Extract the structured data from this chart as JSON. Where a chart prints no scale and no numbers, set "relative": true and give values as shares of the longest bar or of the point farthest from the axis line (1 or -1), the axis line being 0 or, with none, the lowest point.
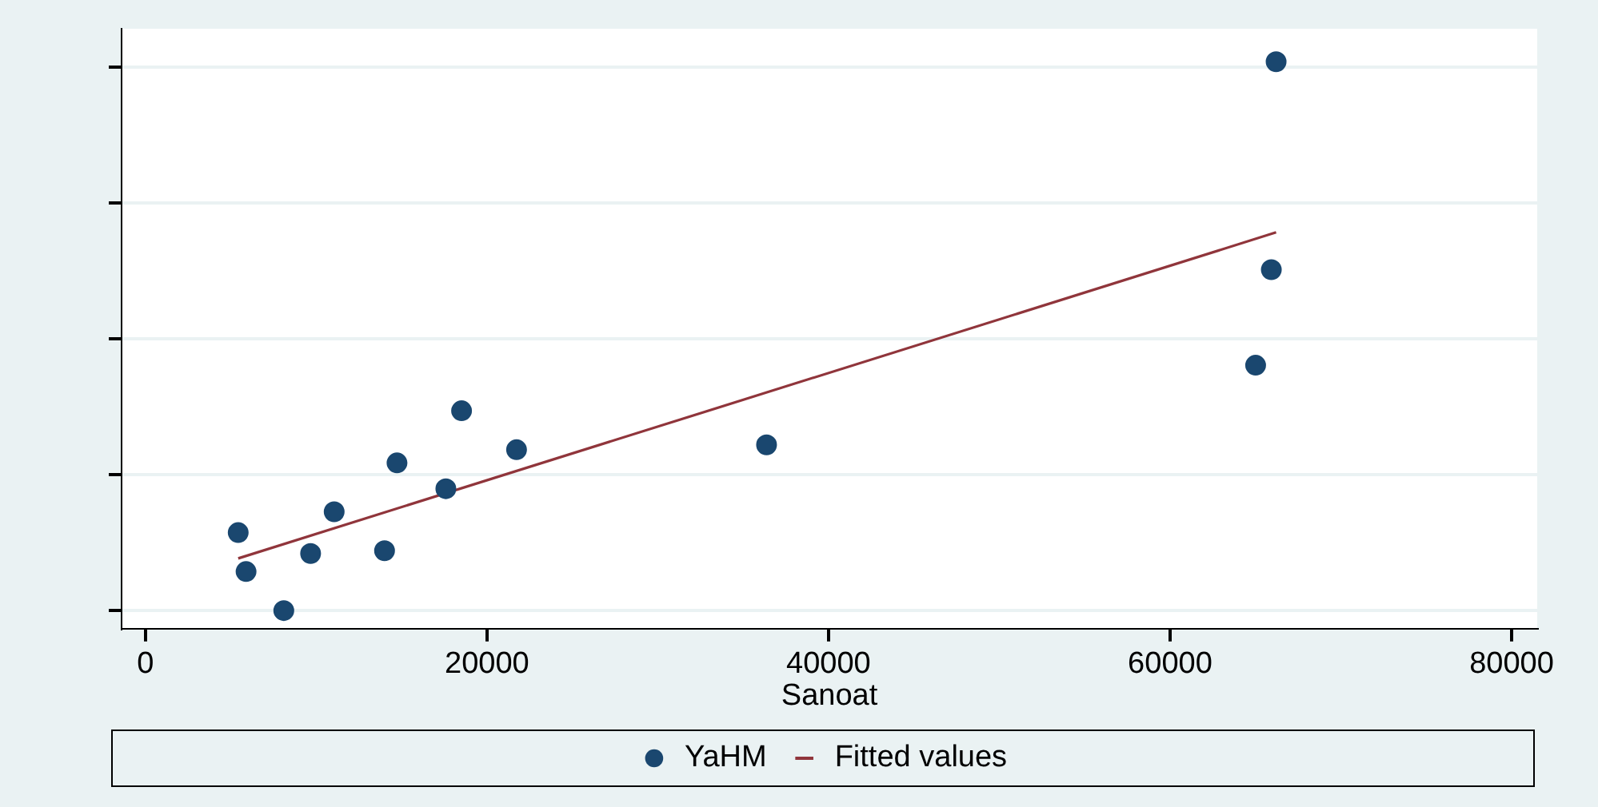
{
  "chart_data": {
    "type": "scatter",
    "xlabel": "Sanoat",
    "relative": true,
    "xlim": [
      -1400,
      81500
    ],
    "xticks": [
      0,
      20000,
      40000,
      60000,
      80000
    ],
    "tick_labels": "x",
    "grid": "y",
    "legend": "bottom",
    "marker": "circle",
    "series": [
      {
        "name": "YaHM",
        "type": "scatter",
        "color": "#1a476f",
        "x": [
          5430,
          5890,
          8100,
          9670,
          11050,
          14000,
          14730,
          17590,
          18510,
          21730,
          36370,
          65010,
          65930,
          66210
        ],
        "values": [
          0.142,
          0.071,
          0,
          0.104,
          0.18,
          0.109,
          0.269,
          0.222,
          0.364,
          0.293,
          0.302,
          0.447,
          0.621,
          1
        ]
      },
      {
        "name": "Fitted values",
        "type": "line",
        "color": "#90353b",
        "marker": "none",
        "line_style": "solid",
        "x": [
          5430,
          66210
        ],
        "values": [
          0.095,
          0.689
        ]
      }
    ]
  }
}
